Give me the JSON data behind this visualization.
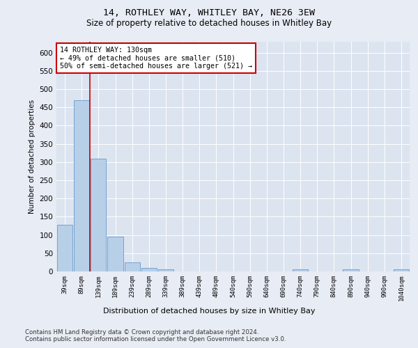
{
  "title1": "14, ROTHLEY WAY, WHITLEY BAY, NE26 3EW",
  "title2": "Size of property relative to detached houses in Whitley Bay",
  "xlabel": "Distribution of detached houses by size in Whitley Bay",
  "ylabel": "Number of detached properties",
  "bins": [
    "39sqm",
    "89sqm",
    "139sqm",
    "189sqm",
    "239sqm",
    "289sqm",
    "339sqm",
    "389sqm",
    "439sqm",
    "489sqm",
    "540sqm",
    "590sqm",
    "640sqm",
    "690sqm",
    "740sqm",
    "790sqm",
    "840sqm",
    "890sqm",
    "940sqm",
    "990sqm",
    "1040sqm"
  ],
  "values": [
    128,
    470,
    310,
    95,
    25,
    10,
    5,
    0,
    0,
    0,
    0,
    0,
    0,
    0,
    5,
    0,
    0,
    5,
    0,
    0,
    5
  ],
  "bar_color": "#b8cfe8",
  "bar_edge_color": "#6699cc",
  "vline_color": "#cc0000",
  "annotation_text": "14 ROTHLEY WAY: 130sqm\n← 49% of detached houses are smaller (510)\n50% of semi-detached houses are larger (521) →",
  "annotation_box_color": "white",
  "annotation_box_edge_color": "#cc0000",
  "ylim": [
    0,
    630
  ],
  "yticks": [
    0,
    50,
    100,
    150,
    200,
    250,
    300,
    350,
    400,
    450,
    500,
    550,
    600
  ],
  "bg_color": "#e8ecf4",
  "plot_bg_color": "#dce4f0",
  "footer1": "Contains HM Land Registry data © Crown copyright and database right 2024.",
  "footer2": "Contains public sector information licensed under the Open Government Licence v3.0."
}
